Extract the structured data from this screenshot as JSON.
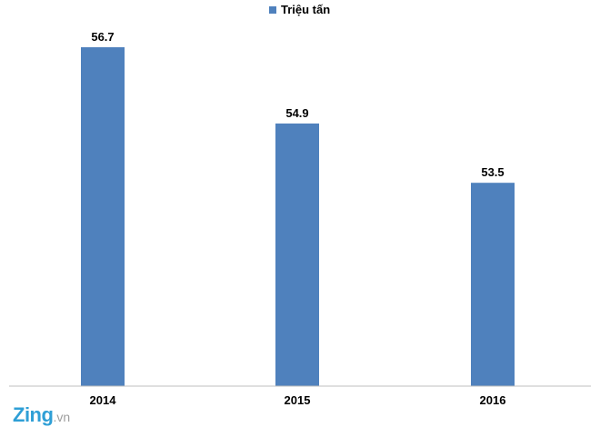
{
  "chart_data": {
    "type": "bar",
    "categories": [
      "2014",
      "2015",
      "2016"
    ],
    "series": [
      {
        "name": "Triệu tấn",
        "values": [
          56.7,
          54.9,
          53.5
        ],
        "color": "#4f81bd"
      }
    ],
    "data_labels": [
      "56.7",
      "54.9",
      "53.5"
    ],
    "title": "",
    "xlabel": "",
    "ylabel": "",
    "ylim": [
      48.7,
      57.5
    ],
    "grid": false,
    "legend_position": "top-center"
  },
  "watermark": {
    "brand": "Zing",
    "tld": ".vn"
  }
}
